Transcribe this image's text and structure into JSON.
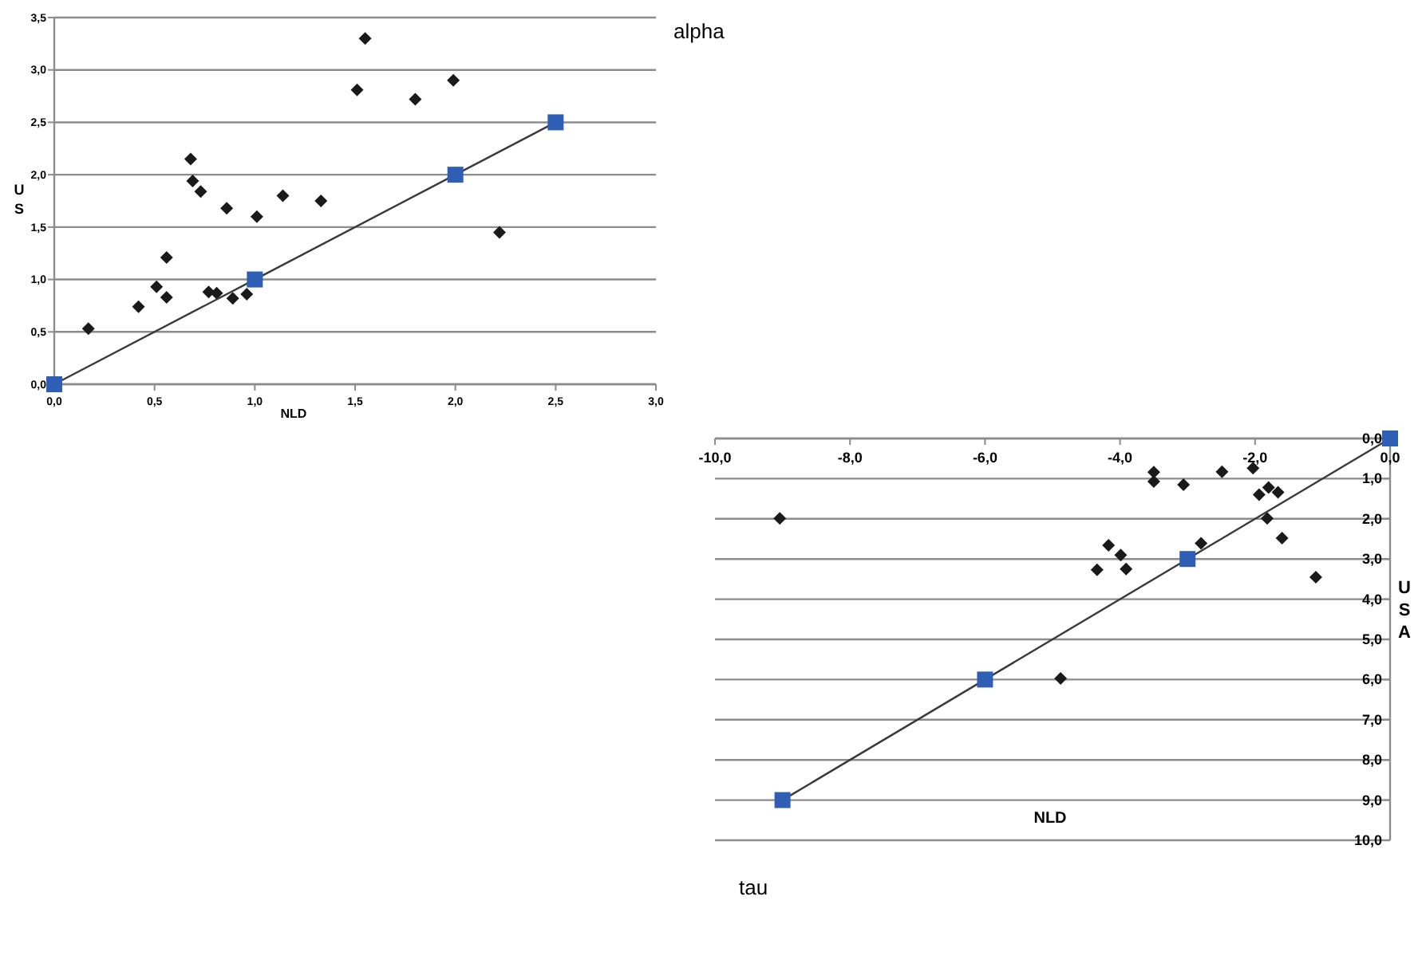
{
  "chart_data": [
    {
      "type": "scatter",
      "title": "alpha",
      "xlabel": "NLD",
      "ylabel": "US",
      "xlim": [
        0,
        3
      ],
      "ylim": [
        0,
        3.5
      ],
      "xticks": [
        {
          "value": 0,
          "label": "0,0"
        },
        {
          "value": 0.5,
          "label": "0,5"
        },
        {
          "value": 1,
          "label": "1,0"
        },
        {
          "value": 1.5,
          "label": "1,5"
        },
        {
          "value": 2,
          "label": "2,0"
        },
        {
          "value": 2.5,
          "label": "2,5"
        },
        {
          "value": 3,
          "label": "3,0"
        }
      ],
      "yticks": [
        {
          "value": 0,
          "label": "0,0"
        },
        {
          "value": 0.5,
          "label": "0,5"
        },
        {
          "value": 1,
          "label": "1,0"
        },
        {
          "value": 1.5,
          "label": "1,5"
        },
        {
          "value": 2,
          "label": "2,0"
        },
        {
          "value": 2.5,
          "label": "2,5"
        },
        {
          "value": 3,
          "label": "3,0"
        },
        {
          "value": 3.5,
          "label": "3,5"
        }
      ],
      "grid": "y",
      "series": [
        {
          "type": "scatter",
          "color": "#1a1a1a",
          "marker": "diamond",
          "x": [
            0.17,
            0.42,
            0.51,
            0.56,
            0.56,
            0.68,
            0.69,
            0.73,
            0.77,
            0.81,
            0.86,
            0.89,
            0.96,
            1.01,
            1.14,
            1.33,
            1.51,
            1.55,
            1.8,
            1.99,
            2.22
          ],
          "values": [
            0.53,
            0.74,
            0.93,
            0.83,
            1.21,
            2.15,
            1.94,
            1.84,
            0.88,
            0.87,
            1.68,
            0.82,
            0.86,
            1.6,
            1.8,
            1.75,
            2.81,
            3.3,
            2.72,
            2.9,
            1.45
          ]
        },
        {
          "type": "line",
          "color": "#2e5fb5",
          "marker": "square",
          "line_style": "solid",
          "x": [
            0,
            1,
            2,
            2.5
          ],
          "values": [
            0,
            1,
            2,
            2.5
          ]
        }
      ]
    },
    {
      "type": "scatter",
      "title": "tau",
      "xlabel": "NLD",
      "ylabel": "USA",
      "xlim": [
        -10,
        0
      ],
      "ylim": [
        10,
        0
      ],
      "xticks": [
        {
          "value": -10,
          "label": "-10,0"
        },
        {
          "value": -8,
          "label": "-8,0"
        },
        {
          "value": -6,
          "label": "-6,0"
        },
        {
          "value": -4,
          "label": "-4,0"
        },
        {
          "value": -2,
          "label": "-2,0"
        },
        {
          "value": 0,
          "label": "0,0"
        }
      ],
      "yticks": [
        {
          "value": 0,
          "label": "0,0"
        },
        {
          "value": 1,
          "label": "1,0"
        },
        {
          "value": 2,
          "label": "2,0"
        },
        {
          "value": 3,
          "label": "3,0"
        },
        {
          "value": 4,
          "label": "4,0"
        },
        {
          "value": 5,
          "label": "5,0"
        },
        {
          "value": 6,
          "label": "6,0"
        },
        {
          "value": 7,
          "label": "7,0"
        },
        {
          "value": 8,
          "label": "8,0"
        },
        {
          "value": 9,
          "label": "9,0"
        },
        {
          "value": 10,
          "label": "10,0"
        }
      ],
      "grid": "y",
      "series": [
        {
          "type": "scatter",
          "color": "#1a1a1a",
          "marker": "diamond",
          "x": [
            -9.04,
            -4.88,
            -4.34,
            -4.17,
            -3.99,
            -3.91,
            -3.5,
            -3.5,
            -3.06,
            -2.8,
            -2.49,
            -2.03,
            -1.94,
            -1.8,
            -1.66,
            -1.82,
            -1.6,
            -1.1
          ],
          "values": [
            1.99,
            5.97,
            3.27,
            2.66,
            2.9,
            3.25,
            0.84,
            1.07,
            1.15,
            2.61,
            0.83,
            0.74,
            1.4,
            1.22,
            1.34,
            1.99,
            2.48,
            3.45
          ]
        },
        {
          "type": "line",
          "color": "#2e5fb5",
          "marker": "square",
          "line_style": "solid",
          "x": [
            -9,
            -6,
            -3,
            0
          ],
          "values": [
            9,
            6,
            3,
            0
          ]
        }
      ]
    }
  ]
}
